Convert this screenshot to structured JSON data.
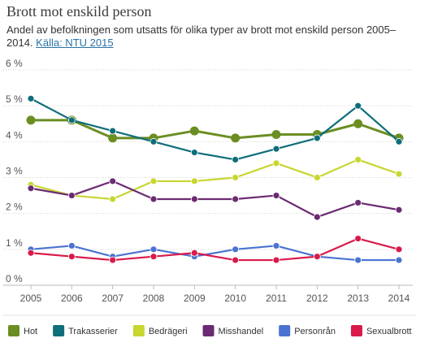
{
  "header": {
    "title": "Brott mot enskild person",
    "subtitle": "Andel av befolkningen som utsatts för olika typer av brott mot enskild person 2005–2014.",
    "source_label": "Källa: NTU 2015"
  },
  "chart_data": {
    "type": "line",
    "x": [
      "2005",
      "2006",
      "2007",
      "2008",
      "2009",
      "2010",
      "2011",
      "2012",
      "2013",
      "2014"
    ],
    "y_ticks": [
      "0 %",
      "1 %",
      "2 %",
      "3 %",
      "4 %",
      "5 %",
      "6 %"
    ],
    "ylim": [
      0,
      6
    ],
    "ylabel": "",
    "xlabel": "",
    "grid": "horizontal",
    "legend_position": "bottom",
    "series": [
      {
        "name": "Hot",
        "color": "#6b8e23",
        "values": [
          4.6,
          4.6,
          4.1,
          4.1,
          4.3,
          4.1,
          4.2,
          4.2,
          4.5,
          4.1
        ]
      },
      {
        "name": "Trakasserier",
        "color": "#0e6e7a",
        "values": [
          5.2,
          4.6,
          4.3,
          4.0,
          3.7,
          3.5,
          3.8,
          4.1,
          5.0,
          4.0
        ]
      },
      {
        "name": "Bedrägeri",
        "color": "#c8d630",
        "values": [
          2.8,
          2.5,
          2.4,
          2.9,
          2.9,
          3.0,
          3.4,
          3.0,
          3.5,
          3.1
        ]
      },
      {
        "name": "Misshandel",
        "color": "#6b2a72",
        "values": [
          2.7,
          2.5,
          2.9,
          2.4,
          2.4,
          2.4,
          2.5,
          1.9,
          2.3,
          2.1
        ]
      },
      {
        "name": "Personrån",
        "color": "#4a73d1",
        "values": [
          1.0,
          1.1,
          0.8,
          1.0,
          0.8,
          1.0,
          1.1,
          0.8,
          0.7,
          0.7
        ]
      },
      {
        "name": "Sexualbrott",
        "color": "#d91a4a",
        "values": [
          0.9,
          0.8,
          0.7,
          0.8,
          0.9,
          0.7,
          0.7,
          0.8,
          1.3,
          1.0
        ]
      }
    ]
  }
}
